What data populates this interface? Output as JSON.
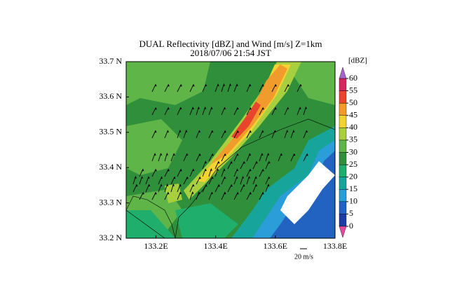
{
  "title": "DUAL Reflectivity [dBZ] and Wind [m/s] Z=1km",
  "subtitle": "2018/07/06 21:54 JST",
  "xlim": [
    133.1,
    133.8
  ],
  "ylim": [
    33.2,
    33.7
  ],
  "xticks": [
    {
      "value": 133.2,
      "label": "133.2E"
    },
    {
      "value": 133.4,
      "label": "133.4E"
    },
    {
      "value": 133.6,
      "label": "133.6E"
    },
    {
      "value": 133.8,
      "label": "133.8E"
    }
  ],
  "yticks": [
    {
      "value": 33.2,
      "label": "33.2 N"
    },
    {
      "value": 33.3,
      "label": "33.3 N"
    },
    {
      "value": 33.4,
      "label": "33.4 N"
    },
    {
      "value": 33.5,
      "label": "33.5 N"
    },
    {
      "value": 33.6,
      "label": "33.6 N"
    },
    {
      "value": 33.7,
      "label": "33.7 N"
    }
  ],
  "colorbar": {
    "unit": "[dBZ]",
    "ticks": [
      0,
      5,
      10,
      15,
      20,
      25,
      30,
      35,
      40,
      45,
      50,
      55,
      60
    ],
    "colors": [
      "#1b3d9f",
      "#2263c2",
      "#2b9dd8",
      "#17a59b",
      "#20ae6d",
      "#2f8f3b",
      "#5fb548",
      "#a8cf3d",
      "#f2d332",
      "#f29b2d",
      "#e8452c",
      "#d6265e"
    ],
    "under_color": "#e54aa0",
    "over_color": "#a765cb"
  },
  "wind_reference": "20 m/s"
}
